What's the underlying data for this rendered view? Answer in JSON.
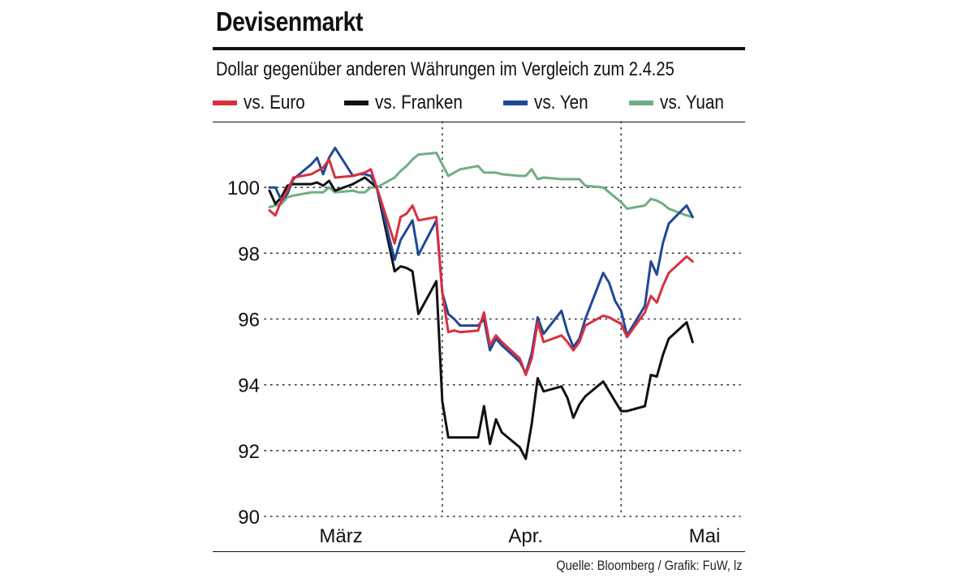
{
  "header": {
    "title": "Devisenmarkt",
    "subtitle": "Dollar gegenüber anderen Währungen im Vergleich zum 2.4.25"
  },
  "footer": {
    "source": "Quelle: Bloomberg / Grafik: FuW, lz"
  },
  "chart_data": {
    "type": "line",
    "title": "Devisenmarkt",
    "subtitle": "Dollar gegenüber anderen Währungen im Vergleich zum 2.4.25",
    "xlabel": "",
    "ylabel": "",
    "ylim": [
      90,
      102
    ],
    "yticks": [
      90,
      92,
      94,
      96,
      98,
      100
    ],
    "x_axis_labels": [
      {
        "label": "März",
        "date": "2025-03-15"
      },
      {
        "label": "Apr.",
        "date": "2025-04-15"
      },
      {
        "label": "Mai",
        "date": "2025-05-15"
      }
    ],
    "month_separators": [
      "2025-04-01",
      "2025-05-01"
    ],
    "x_range": [
      "2025-03-03",
      "2025-05-21"
    ],
    "grid": "horizontal dotted",
    "legend": "top",
    "series": [
      {
        "name": "vs. Euro",
        "color": "#d9303f",
        "points": [
          [
            "2025-03-03",
            99.3
          ],
          [
            "2025-03-04",
            99.15
          ],
          [
            "2025-03-05",
            99.6
          ],
          [
            "2025-03-06",
            99.9
          ],
          [
            "2025-03-07",
            100.3
          ],
          [
            "2025-03-10",
            100.4
          ],
          [
            "2025-03-11",
            100.5
          ],
          [
            "2025-03-12",
            100.6
          ],
          [
            "2025-03-13",
            100.85
          ],
          [
            "2025-03-14",
            100.3
          ],
          [
            "2025-03-17",
            100.35
          ],
          [
            "2025-03-18",
            100.4
          ],
          [
            "2025-03-19",
            100.45
          ],
          [
            "2025-03-20",
            100.55
          ],
          [
            "2025-03-21",
            100.0
          ],
          [
            "2025-03-24",
            98.3
          ],
          [
            "2025-03-25",
            99.1
          ],
          [
            "2025-03-26",
            99.2
          ],
          [
            "2025-03-27",
            99.45
          ],
          [
            "2025-03-28",
            99.0
          ],
          [
            "2025-03-31",
            99.1
          ],
          [
            "2025-04-01",
            96.8
          ],
          [
            "2025-04-02",
            95.6
          ],
          [
            "2025-04-03",
            95.65
          ],
          [
            "2025-04-04",
            95.6
          ],
          [
            "2025-04-07",
            95.65
          ],
          [
            "2025-04-08",
            96.2
          ],
          [
            "2025-04-09",
            95.2
          ],
          [
            "2025-04-10",
            95.5
          ],
          [
            "2025-04-11",
            95.3
          ],
          [
            "2025-04-14",
            94.8
          ],
          [
            "2025-04-15",
            94.3
          ],
          [
            "2025-04-16",
            94.8
          ],
          [
            "2025-04-17",
            95.9
          ],
          [
            "2025-04-18",
            95.3
          ],
          [
            "2025-04-21",
            95.5
          ],
          [
            "2025-04-22",
            95.3
          ],
          [
            "2025-04-23",
            95.05
          ],
          [
            "2025-04-24",
            95.3
          ],
          [
            "2025-04-25",
            95.8
          ],
          [
            "2025-04-28",
            96.1
          ],
          [
            "2025-04-29",
            96.05
          ],
          [
            "2025-04-30",
            95.95
          ],
          [
            "2025-05-01",
            95.85
          ],
          [
            "2025-05-02",
            95.45
          ],
          [
            "2025-05-05",
            96.2
          ],
          [
            "2025-05-06",
            96.7
          ],
          [
            "2025-05-07",
            96.5
          ],
          [
            "2025-05-08",
            97.0
          ],
          [
            "2025-05-09",
            97.4
          ],
          [
            "2025-05-12",
            97.9
          ],
          [
            "2025-05-13",
            97.75
          ]
        ]
      },
      {
        "name": "vs. Franken",
        "color": "#111111",
        "points": [
          [
            "2025-03-03",
            99.9
          ],
          [
            "2025-03-04",
            99.5
          ],
          [
            "2025-03-05",
            99.7
          ],
          [
            "2025-03-06",
            100.05
          ],
          [
            "2025-03-07",
            100.1
          ],
          [
            "2025-03-10",
            100.1
          ],
          [
            "2025-03-11",
            100.15
          ],
          [
            "2025-03-12",
            100.05
          ],
          [
            "2025-03-13",
            100.2
          ],
          [
            "2025-03-14",
            99.9
          ],
          [
            "2025-03-17",
            100.1
          ],
          [
            "2025-03-18",
            100.2
          ],
          [
            "2025-03-19",
            100.3
          ],
          [
            "2025-03-20",
            100.15
          ],
          [
            "2025-03-21",
            100.0
          ],
          [
            "2025-03-24",
            97.45
          ],
          [
            "2025-03-25",
            97.6
          ],
          [
            "2025-03-26",
            97.55
          ],
          [
            "2025-03-27",
            97.45
          ],
          [
            "2025-03-28",
            96.15
          ],
          [
            "2025-03-31",
            97.15
          ],
          [
            "2025-04-01",
            93.5
          ],
          [
            "2025-04-02",
            92.4
          ],
          [
            "2025-04-03",
            92.4
          ],
          [
            "2025-04-04",
            92.4
          ],
          [
            "2025-04-07",
            92.4
          ],
          [
            "2025-04-08",
            93.35
          ],
          [
            "2025-04-09",
            92.2
          ],
          [
            "2025-04-10",
            92.95
          ],
          [
            "2025-04-11",
            92.55
          ],
          [
            "2025-04-14",
            92.1
          ],
          [
            "2025-04-15",
            91.75
          ],
          [
            "2025-04-16",
            92.8
          ],
          [
            "2025-04-17",
            94.2
          ],
          [
            "2025-04-18",
            93.8
          ],
          [
            "2025-04-21",
            93.95
          ],
          [
            "2025-04-22",
            93.6
          ],
          [
            "2025-04-23",
            93.0
          ],
          [
            "2025-04-24",
            93.4
          ],
          [
            "2025-04-25",
            93.65
          ],
          [
            "2025-04-28",
            94.1
          ],
          [
            "2025-04-29",
            93.8
          ],
          [
            "2025-04-30",
            93.5
          ],
          [
            "2025-05-01",
            93.2
          ],
          [
            "2025-05-02",
            93.2
          ],
          [
            "2025-05-05",
            93.35
          ],
          [
            "2025-05-06",
            94.3
          ],
          [
            "2025-05-07",
            94.25
          ],
          [
            "2025-05-08",
            94.9
          ],
          [
            "2025-05-09",
            95.4
          ],
          [
            "2025-05-12",
            95.9
          ],
          [
            "2025-05-13",
            95.3
          ]
        ]
      },
      {
        "name": "vs. Yen",
        "color": "#1f4896",
        "points": [
          [
            "2025-03-03",
            100.0
          ],
          [
            "2025-03-04",
            100.0
          ],
          [
            "2025-03-05",
            99.6
          ],
          [
            "2025-03-06",
            99.8
          ],
          [
            "2025-03-07",
            100.25
          ],
          [
            "2025-03-10",
            100.7
          ],
          [
            "2025-03-11",
            100.9
          ],
          [
            "2025-03-12",
            100.4
          ],
          [
            "2025-03-13",
            100.9
          ],
          [
            "2025-03-14",
            101.2
          ],
          [
            "2025-03-17",
            100.35
          ],
          [
            "2025-03-18",
            100.4
          ],
          [
            "2025-03-19",
            100.4
          ],
          [
            "2025-03-20",
            100.35
          ],
          [
            "2025-03-21",
            100.0
          ],
          [
            "2025-03-24",
            97.8
          ],
          [
            "2025-03-25",
            98.4
          ],
          [
            "2025-03-26",
            98.7
          ],
          [
            "2025-03-27",
            99.0
          ],
          [
            "2025-03-28",
            97.95
          ],
          [
            "2025-03-31",
            99.0
          ],
          [
            "2025-04-01",
            96.8
          ],
          [
            "2025-04-02",
            96.15
          ],
          [
            "2025-04-03",
            96.0
          ],
          [
            "2025-04-04",
            95.8
          ],
          [
            "2025-04-07",
            95.8
          ],
          [
            "2025-04-08",
            96.0
          ],
          [
            "2025-04-09",
            95.05
          ],
          [
            "2025-04-10",
            95.4
          ],
          [
            "2025-04-11",
            95.2
          ],
          [
            "2025-04-14",
            94.7
          ],
          [
            "2025-04-15",
            94.35
          ],
          [
            "2025-04-16",
            94.95
          ],
          [
            "2025-04-17",
            96.05
          ],
          [
            "2025-04-18",
            95.55
          ],
          [
            "2025-04-21",
            96.25
          ],
          [
            "2025-04-22",
            95.6
          ],
          [
            "2025-04-23",
            95.15
          ],
          [
            "2025-04-24",
            95.4
          ],
          [
            "2025-04-25",
            96.0
          ],
          [
            "2025-04-28",
            97.4
          ],
          [
            "2025-04-29",
            97.1
          ],
          [
            "2025-04-30",
            96.55
          ],
          [
            "2025-05-01",
            96.25
          ],
          [
            "2025-05-02",
            95.5
          ],
          [
            "2025-05-05",
            96.4
          ],
          [
            "2025-05-06",
            97.75
          ],
          [
            "2025-05-07",
            97.35
          ],
          [
            "2025-05-08",
            98.3
          ],
          [
            "2025-05-09",
            98.9
          ],
          [
            "2025-05-12",
            99.45
          ],
          [
            "2025-05-13",
            99.1
          ]
        ]
      },
      {
        "name": "vs. Yuan",
        "color": "#6fae84",
        "points": [
          [
            "2025-03-03",
            99.4
          ],
          [
            "2025-03-04",
            99.45
          ],
          [
            "2025-03-05",
            99.5
          ],
          [
            "2025-03-06",
            99.7
          ],
          [
            "2025-03-07",
            99.75
          ],
          [
            "2025-03-10",
            99.85
          ],
          [
            "2025-03-11",
            99.85
          ],
          [
            "2025-03-12",
            99.85
          ],
          [
            "2025-03-13",
            100.0
          ],
          [
            "2025-03-14",
            99.85
          ],
          [
            "2025-03-17",
            99.9
          ],
          [
            "2025-03-18",
            99.85
          ],
          [
            "2025-03-19",
            99.85
          ],
          [
            "2025-03-20",
            100.0
          ],
          [
            "2025-03-21",
            100.0
          ],
          [
            "2025-03-24",
            100.3
          ],
          [
            "2025-03-25",
            100.5
          ],
          [
            "2025-03-26",
            100.65
          ],
          [
            "2025-03-27",
            100.85
          ],
          [
            "2025-03-28",
            101.0
          ],
          [
            "2025-03-31",
            101.05
          ],
          [
            "2025-04-01",
            100.7
          ],
          [
            "2025-04-02",
            100.35
          ],
          [
            "2025-04-03",
            100.45
          ],
          [
            "2025-04-04",
            100.55
          ],
          [
            "2025-04-07",
            100.65
          ],
          [
            "2025-04-08",
            100.45
          ],
          [
            "2025-04-09",
            100.45
          ],
          [
            "2025-04-10",
            100.45
          ],
          [
            "2025-04-11",
            100.4
          ],
          [
            "2025-04-14",
            100.35
          ],
          [
            "2025-04-15",
            100.35
          ],
          [
            "2025-04-16",
            100.55
          ],
          [
            "2025-04-17",
            100.25
          ],
          [
            "2025-04-18",
            100.3
          ],
          [
            "2025-04-21",
            100.25
          ],
          [
            "2025-04-22",
            100.25
          ],
          [
            "2025-04-23",
            100.25
          ],
          [
            "2025-04-24",
            100.25
          ],
          [
            "2025-04-25",
            100.05
          ],
          [
            "2025-04-28",
            100.0
          ],
          [
            "2025-04-29",
            99.85
          ],
          [
            "2025-04-30",
            99.7
          ],
          [
            "2025-05-01",
            99.55
          ],
          [
            "2025-05-02",
            99.35
          ],
          [
            "2025-05-05",
            99.45
          ],
          [
            "2025-05-06",
            99.65
          ],
          [
            "2025-05-07",
            99.6
          ],
          [
            "2025-05-08",
            99.5
          ],
          [
            "2025-05-09",
            99.35
          ],
          [
            "2025-05-12",
            99.15
          ],
          [
            "2025-05-13",
            99.1
          ]
        ]
      }
    ]
  }
}
